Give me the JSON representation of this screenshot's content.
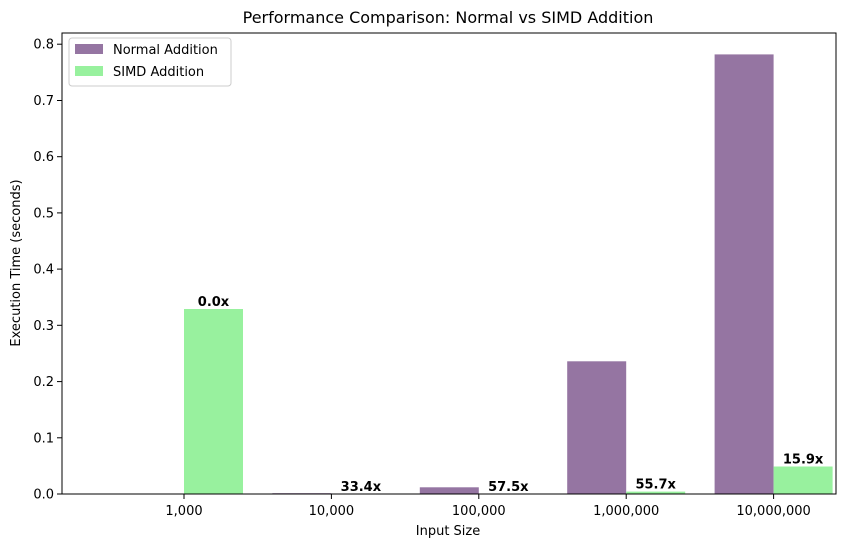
{
  "chart_data": {
    "type": "bar",
    "title": "Performance Comparison: Normal vs SIMD Addition",
    "xlabel": "Input Size",
    "ylabel": "Execution Time (seconds)",
    "categories": [
      "1,000",
      "10,000",
      "100,000",
      "1,000,000",
      "10,000,000"
    ],
    "series": [
      {
        "name": "Normal Addition",
        "color": "#9575a2",
        "values": [
          0.0,
          0.0015,
          0.012,
          0.236,
          0.782
        ]
      },
      {
        "name": "SIMD Addition",
        "color": "#98f19e",
        "values": [
          0.329,
          5e-05,
          0.0002,
          0.0042,
          0.049
        ]
      }
    ],
    "data_labels": [
      "0.0x",
      "33.4x",
      "57.5x",
      "55.7x",
      "15.9x"
    ],
    "ylim": [
      0,
      0.82
    ],
    "yticks": [
      0.0,
      0.1,
      0.2,
      0.3,
      0.4,
      0.5,
      0.6,
      0.7,
      0.8
    ],
    "ytick_labels": [
      "0.0",
      "0.1",
      "0.2",
      "0.3",
      "0.4",
      "0.5",
      "0.6",
      "0.7",
      "0.8"
    ],
    "legend_position": "top-left",
    "grid": false
  }
}
